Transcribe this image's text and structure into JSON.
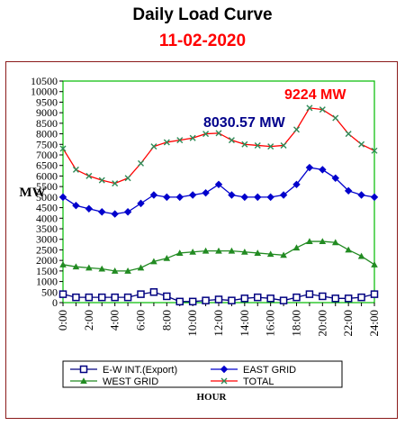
{
  "title": "Daily Load Curve",
  "subtitle": "11-02-2020",
  "subtitle_color": "#ff0000",
  "chart_data": {
    "type": "line",
    "ylabel": "MW",
    "xlabel": "HOUR",
    "ylim": [
      0,
      10500
    ],
    "yticks": [
      0,
      500,
      1000,
      1500,
      2000,
      2500,
      3000,
      3500,
      4000,
      4500,
      5000,
      5500,
      6000,
      6500,
      7000,
      7500,
      8000,
      8500,
      9000,
      9500,
      10000,
      10500
    ],
    "xlim": [
      0,
      24
    ],
    "xticks": [
      "0:00",
      "2:00",
      "4:00",
      "6:00",
      "8:00",
      "10:00",
      "12:00",
      "14:00",
      "16:00",
      "18:00",
      "20:00",
      "22:00",
      "24:00"
    ],
    "x": [
      0,
      1,
      2,
      3,
      4,
      5,
      6,
      7,
      8,
      9,
      10,
      11,
      12,
      13,
      14,
      15,
      16,
      17,
      18,
      19,
      20,
      21,
      22,
      23,
      24
    ],
    "series": [
      {
        "name": "E-W INT.(Export)",
        "color": "#000080",
        "marker": "square",
        "values": [
          400,
          250,
          250,
          250,
          250,
          250,
          400,
          500,
          300,
          50,
          50,
          100,
          150,
          100,
          200,
          250,
          200,
          100,
          250,
          400,
          300,
          200,
          200,
          250,
          400
        ]
      },
      {
        "name": "EAST GRID",
        "color": "#0000cc",
        "marker": "diamond",
        "values": [
          5000,
          4600,
          4450,
          4300,
          4200,
          4300,
          4700,
          5100,
          5000,
          5000,
          5100,
          5200,
          5600,
          5100,
          5000,
          5000,
          5000,
          5100,
          5600,
          6400,
          6300,
          5900,
          5300,
          5100,
          5000
        ]
      },
      {
        "name": "WEST GRID",
        "color": "#228b22",
        "marker": "triangle",
        "values": [
          1800,
          1700,
          1650,
          1600,
          1500,
          1500,
          1650,
          1950,
          2100,
          2350,
          2400,
          2450,
          2450,
          2450,
          2400,
          2350,
          2300,
          2250,
          2600,
          2900,
          2900,
          2850,
          2500,
          2200,
          1800
        ]
      },
      {
        "name": "TOTAL",
        "color": "#ff0000",
        "marker": "x",
        "marker_color": "#2e8b57",
        "values": [
          7300,
          6300,
          6000,
          5800,
          5650,
          5900,
          6600,
          7400,
          7600,
          7700,
          7800,
          8000,
          8030.57,
          7700,
          7500,
          7450,
          7400,
          7450,
          8200,
          9224,
          9150,
          8750,
          8000,
          7500,
          7200
        ]
      }
    ],
    "annotations": [
      {
        "text": "8030.57 MW",
        "color": "#00008b"
      },
      {
        "text": "9224 MW",
        "color": "#ff0000"
      }
    ],
    "legend_position": "bottom",
    "grid": false,
    "plot_border_color": "#00bb00"
  }
}
